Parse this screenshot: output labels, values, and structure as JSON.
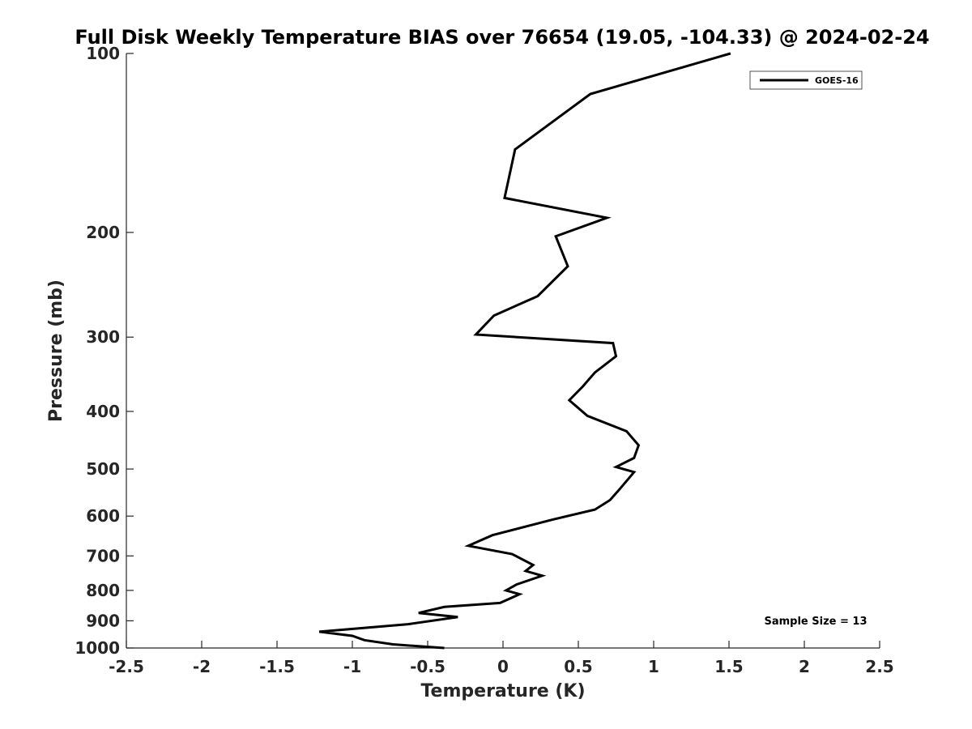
{
  "chart_data": {
    "type": "line",
    "title": "Full Disk Weekly Temperature BIAS over 76654 (19.05, -104.33) @ 2024-02-24",
    "xlabel": "Temperature (K)",
    "ylabel": "Pressure (mb)",
    "xlim": [
      -2.5,
      2.5
    ],
    "ylim": [
      100,
      1000
    ],
    "y_scale": "log",
    "y_reversed": true,
    "x_ticks": [
      -2.5,
      -2,
      -1.5,
      -1,
      -0.5,
      0,
      0.5,
      1,
      1.5,
      2,
      2.5
    ],
    "x_tick_labels": [
      "-2.5",
      "-2",
      "-1.5",
      "-1",
      "-0.5",
      "0",
      "0.5",
      "1",
      "1.5",
      "2",
      "2.5"
    ],
    "y_ticks": [
      100,
      200,
      300,
      400,
      500,
      600,
      700,
      800,
      900,
      1000
    ],
    "y_tick_labels": [
      "100",
      "200",
      "300",
      "400",
      "500",
      "600",
      "700",
      "800",
      "900",
      "1000"
    ],
    "grid": false,
    "legend_position": "top-right",
    "series": [
      {
        "name": "GOES-16",
        "color": "#000000",
        "points": [
          [
            1.51,
            100
          ],
          [
            0.58,
            117
          ],
          [
            0.08,
            145
          ],
          [
            0.01,
            175
          ],
          [
            0.69,
            189
          ],
          [
            0.35,
            203
          ],
          [
            0.43,
            228
          ],
          [
            0.23,
            256
          ],
          [
            -0.06,
            276
          ],
          [
            -0.18,
            297
          ],
          [
            0.73,
            307
          ],
          [
            0.75,
            323
          ],
          [
            0.61,
            344
          ],
          [
            0.53,
            363
          ],
          [
            0.44,
            383
          ],
          [
            0.56,
            407
          ],
          [
            0.82,
            432
          ],
          [
            0.9,
            456
          ],
          [
            0.87,
            479
          ],
          [
            0.75,
            496
          ],
          [
            0.87,
            506
          ],
          [
            0.77,
            542
          ],
          [
            0.71,
            564
          ],
          [
            0.61,
            585
          ],
          [
            0.33,
            608
          ],
          [
            -0.07,
            646
          ],
          [
            -0.23,
            673
          ],
          [
            0.06,
            695
          ],
          [
            0.2,
            725
          ],
          [
            0.15,
            742
          ],
          [
            0.26,
            756
          ],
          [
            0.09,
            782
          ],
          [
            0.02,
            800
          ],
          [
            0.11,
            812
          ],
          [
            -0.02,
            840
          ],
          [
            -0.39,
            853
          ],
          [
            -0.56,
            873
          ],
          [
            -0.3,
            887
          ],
          [
            -0.63,
            912
          ],
          [
            -1.22,
            939
          ],
          [
            -1.0,
            954
          ],
          [
            -0.92,
            970
          ],
          [
            -0.73,
            986
          ],
          [
            -0.39,
            1000
          ]
        ]
      }
    ],
    "annotations": [
      "Sample Size = 13"
    ]
  }
}
